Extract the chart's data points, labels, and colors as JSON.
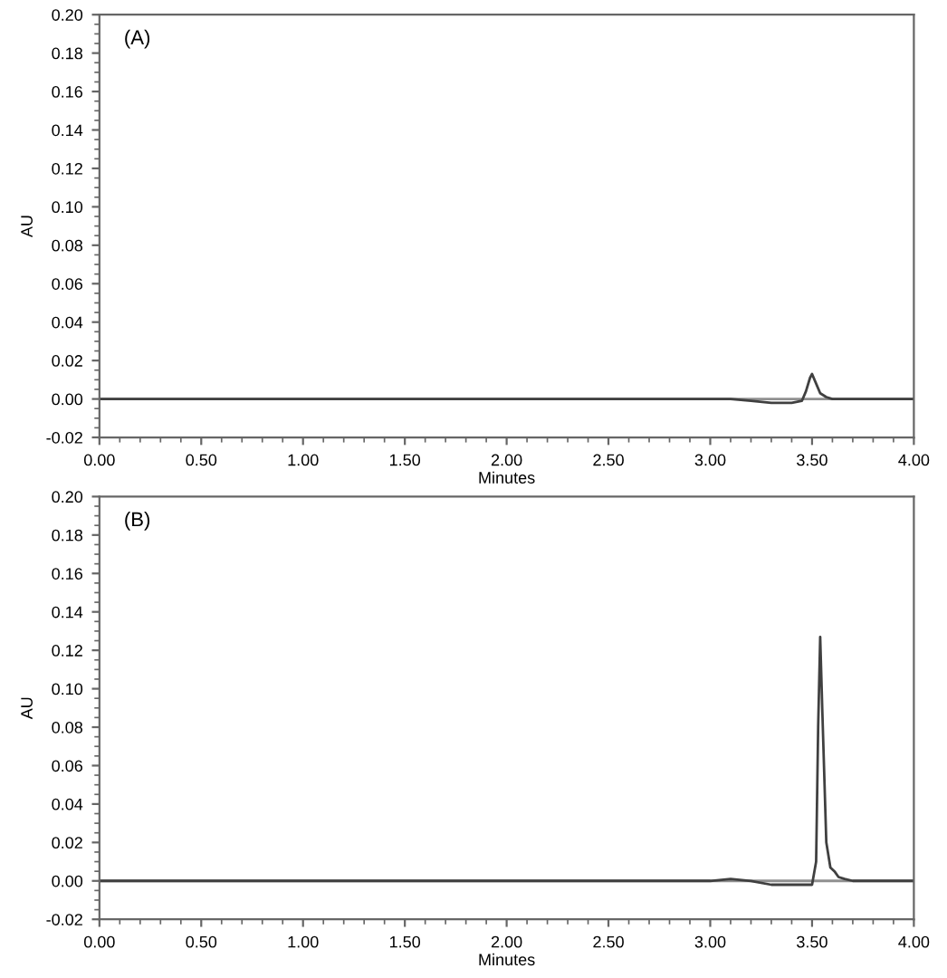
{
  "chart_data": [
    {
      "type": "line",
      "xlabel": "Minutes",
      "ylabel": "AU",
      "annotations": [
        "(A)"
      ],
      "series": [
        {
          "color": "#404040",
          "x": [
            0,
            0.5,
            1.0,
            1.5,
            2.0,
            2.2,
            2.5,
            3.0,
            3.1,
            3.2,
            3.3,
            3.4,
            3.45,
            3.47,
            3.49,
            3.5,
            3.52,
            3.54,
            3.57,
            3.6,
            3.7,
            3.8,
            4.0
          ],
          "values": [
            0,
            0,
            0,
            0,
            0,
            0,
            0,
            0,
            0,
            -0.001,
            -0.002,
            -0.002,
            -0.001,
            0.004,
            0.011,
            0.013,
            0.008,
            0.003,
            0.001,
            0,
            0,
            0,
            0
          ]
        }
      ],
      "xlim": [
        0,
        4
      ],
      "ylim": [
        -0.02,
        0.2
      ],
      "xticks": [
        {
          "value": 0,
          "label": "0.00"
        },
        {
          "value": 0.5,
          "label": "0.50"
        },
        {
          "value": 1.0,
          "label": "1.00"
        },
        {
          "value": 1.5,
          "label": "1.50"
        },
        {
          "value": 2.0,
          "label": "2.00"
        },
        {
          "value": 2.5,
          "label": "2.50"
        },
        {
          "value": 3.0,
          "label": "3.00"
        },
        {
          "value": 3.5,
          "label": "3.50"
        },
        {
          "value": 4.0,
          "label": "4.00"
        }
      ],
      "yticks": [
        {
          "value": -0.02,
          "label": "-0.02"
        },
        {
          "value": 0,
          "label": "0.00"
        },
        {
          "value": 0.02,
          "label": "0.02"
        },
        {
          "value": 0.04,
          "label": "0.04"
        },
        {
          "value": 0.06,
          "label": "0.06"
        },
        {
          "value": 0.08,
          "label": "0.08"
        },
        {
          "value": 0.1,
          "label": "0.10"
        },
        {
          "value": 0.12,
          "label": "0.12"
        },
        {
          "value": 0.14,
          "label": "0.14"
        },
        {
          "value": 0.16,
          "label": "0.16"
        },
        {
          "value": 0.18,
          "label": "0.18"
        },
        {
          "value": 0.2,
          "label": "0.20"
        }
      ],
      "ref_lines": [
        {
          "axis": "y",
          "value": 0,
          "color": "#909090"
        }
      ]
    },
    {
      "type": "line",
      "xlabel": "Minutes",
      "ylabel": "AU",
      "annotations": [
        "(B)"
      ],
      "series": [
        {
          "color": "#404040",
          "x": [
            0,
            0.5,
            1.0,
            1.5,
            2.0,
            2.5,
            2.9,
            3.0,
            3.1,
            3.2,
            3.3,
            3.4,
            3.5,
            3.52,
            3.53,
            3.54,
            3.55,
            3.57,
            3.59,
            3.61,
            3.63,
            3.66,
            3.7,
            3.8,
            4.0
          ],
          "values": [
            0,
            0,
            0,
            0,
            0,
            0,
            0,
            0,
            0.001,
            0,
            -0.002,
            -0.002,
            -0.002,
            0.01,
            0.08,
            0.127,
            0.09,
            0.02,
            0.007,
            0.005,
            0.002,
            0.001,
            0,
            0,
            0
          ]
        }
      ],
      "xlim": [
        0,
        4
      ],
      "ylim": [
        -0.02,
        0.2
      ],
      "xticks": [
        {
          "value": 0,
          "label": "0.00"
        },
        {
          "value": 0.5,
          "label": "0.50"
        },
        {
          "value": 1.0,
          "label": "1.00"
        },
        {
          "value": 1.5,
          "label": "1.50"
        },
        {
          "value": 2.0,
          "label": "2.00"
        },
        {
          "value": 2.5,
          "label": "2.50"
        },
        {
          "value": 3.0,
          "label": "3.00"
        },
        {
          "value": 3.5,
          "label": "3.50"
        },
        {
          "value": 4.0,
          "label": "4.00"
        }
      ],
      "yticks": [
        {
          "value": -0.02,
          "label": "-0.02"
        },
        {
          "value": 0,
          "label": "0.00"
        },
        {
          "value": 0.02,
          "label": "0.02"
        },
        {
          "value": 0.04,
          "label": "0.04"
        },
        {
          "value": 0.06,
          "label": "0.06"
        },
        {
          "value": 0.08,
          "label": "0.08"
        },
        {
          "value": 0.1,
          "label": "0.10"
        },
        {
          "value": 0.12,
          "label": "0.12"
        },
        {
          "value": 0.14,
          "label": "0.14"
        },
        {
          "value": 0.16,
          "label": "0.16"
        },
        {
          "value": 0.18,
          "label": "0.18"
        },
        {
          "value": 0.2,
          "label": "0.20"
        }
      ],
      "ref_lines": [
        {
          "axis": "y",
          "value": 0,
          "color": "#909090"
        }
      ]
    }
  ]
}
